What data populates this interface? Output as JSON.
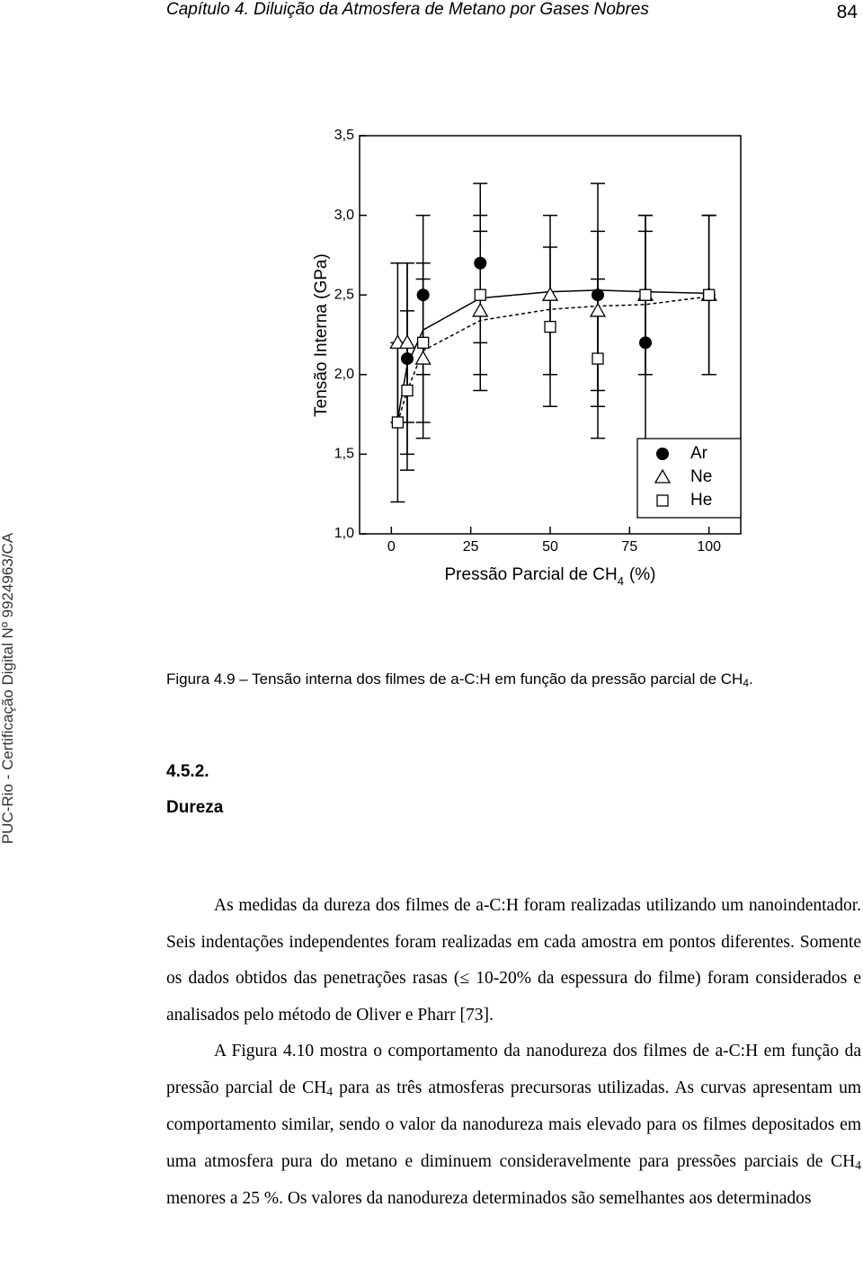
{
  "header": {
    "title": "Capítulo 4. Diluição da Atmosfera de Metano por Gases Nobres",
    "page": "84"
  },
  "watermark": "PUC-Rio - Certificação Digital Nº 9924963/CA",
  "chart_data": {
    "type": "scatter",
    "ylabel": "Tensão Interna (GPa)",
    "xlabel": "Pressão Parcial de CH",
    "xlabel_sub": "4",
    "xlabel_suffix": "(%)",
    "xlim": [
      -10,
      110
    ],
    "ylim": [
      1,
      3.5
    ],
    "xticks": [
      0,
      25,
      50,
      75,
      100
    ],
    "yticks": [
      {
        "value": 1,
        "label": "1,0"
      },
      {
        "value": 1.5,
        "label": "1,5"
      },
      {
        "value": 2,
        "label": "2,0"
      },
      {
        "value": 2.5,
        "label": "2,5"
      },
      {
        "value": 3,
        "label": "3,0"
      },
      {
        "value": 3.5,
        "label": "3,5"
      }
    ],
    "legend": "lower right",
    "series": [
      {
        "name": "Ar",
        "marker": "circle",
        "color": "#000000",
        "x": [
          5,
          10,
          28,
          65,
          80,
          100
        ],
        "values": [
          2.1,
          2.5,
          2.7,
          2.5,
          2.2,
          2.5
        ],
        "errors": [
          0.6,
          0.5,
          0.5,
          0.7,
          0.7,
          0.5
        ]
      },
      {
        "name": "Ne",
        "marker": "triangle",
        "color": "#000000",
        "x": [
          2,
          5,
          10,
          28,
          50,
          65,
          80,
          100
        ],
        "values": [
          2.2,
          2.2,
          2.1,
          2.4,
          2.5,
          2.4,
          2.5,
          2.5
        ],
        "errors": [
          0.5,
          0.5,
          0.5,
          0.5,
          0.5,
          0.5,
          0.5,
          0.5
        ]
      },
      {
        "name": "He",
        "marker": "square",
        "color": "#000000",
        "x": [
          2,
          5,
          10,
          28,
          50,
          65,
          80,
          100
        ],
        "values": [
          1.7,
          1.9,
          2.2,
          2.5,
          2.3,
          2.1,
          2.5,
          2.5
        ],
        "errors": [
          0.5,
          0.5,
          0.5,
          0.5,
          0.5,
          0.5,
          0.5,
          0.5
        ]
      }
    ],
    "fits": [
      {
        "style": "solid",
        "x": [
          2,
          5,
          10,
          28,
          50,
          65,
          80,
          100
        ],
        "values": [
          1.72,
          2.06,
          2.28,
          2.48,
          2.52,
          2.53,
          2.52,
          2.51
        ]
      },
      {
        "style": "dashed",
        "x": [
          2,
          5,
          10,
          28,
          50,
          65,
          80,
          100
        ],
        "values": [
          1.7,
          1.9,
          2.15,
          2.34,
          2.41,
          2.43,
          2.44,
          2.49
        ]
      }
    ]
  },
  "caption": {
    "parts": [
      {
        "text": "Figura 4.9 – Tensão interna dos filmes de a-C:H em função da pressão parcial de CH"
      },
      {
        "text": "4",
        "sub": true
      },
      {
        "text": "."
      }
    ]
  },
  "section": {
    "number": "4.5.2.",
    "title": "Dureza"
  },
  "paragraphs": [
    {
      "parts": [
        {
          "text": "As medidas da dureza dos filmes de a-C:H foram realizadas utilizando um nanoindentador. Seis indentações independentes foram realizadas em cada amostra em pontos diferentes. Somente os dados obtidos das penetrações rasas (≤ 10-20% da espessura do filme) foram considerados e analisados pelo método de Oliver e Pharr [73]."
        }
      ]
    },
    {
      "parts": [
        {
          "text": "A Figura 4.10 mostra o comportamento da nanodureza dos filmes de a-C:H em função da pressão parcial de CH"
        },
        {
          "text": "4",
          "sub": true
        },
        {
          "text": " para as três atmosferas precursoras utilizadas. As curvas apresentam um comportamento similar, sendo o valor da nanodureza mais elevado para os filmes depositados em uma atmosfera pura do metano e diminuem consideravelmente para pressões parciais de CH"
        },
        {
          "text": "4",
          "sub": true
        },
        {
          "text": " menores a 25 %. Os valores da nanodureza determinados são semelhantes aos determinados"
        }
      ]
    }
  ]
}
